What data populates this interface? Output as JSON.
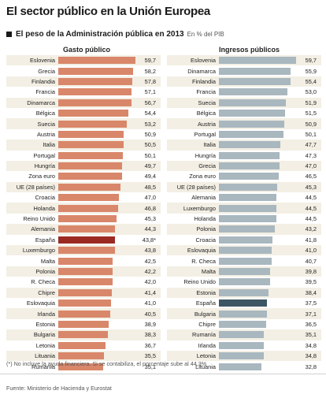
{
  "title": "El sector público en la Unión Europea",
  "subtitle": "El peso de la Administración pública en 2013",
  "unit": "En % del PIB",
  "footnote": "(*) No incluye la ayuda financiera. Si se contabiliza, el porcentaje sube al 44,3%",
  "source": "Fuente: Ministerio de Hacienda y Eurostat",
  "colors": {
    "gasto_bar": "#d9876a",
    "gasto_highlight": "#9b2a22",
    "ingresos_bar": "#a9b7bf",
    "ingresos_highlight": "#3d5663",
    "row_alt": "#f3efe4"
  },
  "chart_data": [
    {
      "type": "bar",
      "title": "Gasto público",
      "orientation": "horizontal",
      "highlight": "España",
      "xlim": [
        0,
        60
      ],
      "rows": [
        {
          "label": "Eslovenia",
          "value": 59.7,
          "text": "59,7"
        },
        {
          "label": "Grecia",
          "value": 58.2,
          "text": "58,2"
        },
        {
          "label": "Finlandia",
          "value": 57.8,
          "text": "57,8"
        },
        {
          "label": "Francia",
          "value": 57.1,
          "text": "57,1"
        },
        {
          "label": "Dinamarca",
          "value": 56.7,
          "text": "56,7"
        },
        {
          "label": "Bélgica",
          "value": 54.4,
          "text": "54,4"
        },
        {
          "label": "Suecia",
          "value": 53.2,
          "text": "53,2"
        },
        {
          "label": "Austria",
          "value": 50.9,
          "text": "50,9"
        },
        {
          "label": "Italia",
          "value": 50.5,
          "text": "50,5"
        },
        {
          "label": "Portugal",
          "value": 50.1,
          "text": "50,1"
        },
        {
          "label": "Hungría",
          "value": 49.7,
          "text": "49,7"
        },
        {
          "label": "Zona euro",
          "value": 49.4,
          "text": "49,4"
        },
        {
          "label": "UE (28 países)",
          "value": 48.5,
          "text": "48,5"
        },
        {
          "label": "Croacia",
          "value": 47.0,
          "text": "47,0"
        },
        {
          "label": "Holanda",
          "value": 46.8,
          "text": "46,8"
        },
        {
          "label": "Reino Unido",
          "value": 45.3,
          "text": "45,3"
        },
        {
          "label": "Alemania",
          "value": 44.3,
          "text": "44,3"
        },
        {
          "label": "España",
          "value": 43.8,
          "text": "43,8*"
        },
        {
          "label": "Luxemburgo",
          "value": 43.8,
          "text": "43,8"
        },
        {
          "label": "Malta",
          "value": 42.5,
          "text": "42,5"
        },
        {
          "label": "Polonia",
          "value": 42.2,
          "text": "42,2"
        },
        {
          "label": "R. Checa",
          "value": 42.0,
          "text": "42,0"
        },
        {
          "label": "Chipre",
          "value": 41.4,
          "text": "41,4"
        },
        {
          "label": "Eslovaquia",
          "value": 41.0,
          "text": "41,0"
        },
        {
          "label": "Irlanda",
          "value": 40.5,
          "text": "40,5"
        },
        {
          "label": "Estonia",
          "value": 38.9,
          "text": "38,9"
        },
        {
          "label": "Bulgaria",
          "value": 38.3,
          "text": "38,3"
        },
        {
          "label": "Letonia",
          "value": 36.7,
          "text": "36,7"
        },
        {
          "label": "Lituania",
          "value": 35.5,
          "text": "35,5"
        },
        {
          "label": "Rumanía",
          "value": 35.1,
          "text": "35,1"
        }
      ]
    },
    {
      "type": "bar",
      "title": "Ingresos públicos",
      "orientation": "horizontal",
      "highlight": "España",
      "xlim": [
        0,
        60
      ],
      "rows": [
        {
          "label": "Eslovenia",
          "value": 59.7,
          "text": "59,7"
        },
        {
          "label": "Dinamarca",
          "value": 55.9,
          "text": "55,9"
        },
        {
          "label": "Finlandia",
          "value": 55.4,
          "text": "55,4"
        },
        {
          "label": "Francia",
          "value": 53.0,
          "text": "53,0"
        },
        {
          "label": "Suecia",
          "value": 51.9,
          "text": "51,9"
        },
        {
          "label": "Bélgica",
          "value": 51.5,
          "text": "51,5"
        },
        {
          "label": "Austria",
          "value": 50.9,
          "text": "50,9"
        },
        {
          "label": "Portugal",
          "value": 50.1,
          "text": "50,1"
        },
        {
          "label": "Italia",
          "value": 47.7,
          "text": "47,7"
        },
        {
          "label": "Hungría",
          "value": 47.3,
          "text": "47,3"
        },
        {
          "label": "Grecia",
          "value": 47.0,
          "text": "47,0"
        },
        {
          "label": "Zona euro",
          "value": 46.5,
          "text": "46,5"
        },
        {
          "label": "UE (28 países)",
          "value": 45.3,
          "text": "45,3"
        },
        {
          "label": "Alemania",
          "value": 44.5,
          "text": "44,5"
        },
        {
          "label": "Luxemburgo",
          "value": 44.5,
          "text": "44,5"
        },
        {
          "label": "Holanda",
          "value": 44.5,
          "text": "44,5"
        },
        {
          "label": "Polonia",
          "value": 43.2,
          "text": "43,2"
        },
        {
          "label": "Croacia",
          "value": 41.8,
          "text": "41,8"
        },
        {
          "label": "Eslovaquia",
          "value": 41.0,
          "text": "41,0"
        },
        {
          "label": "R. Checa",
          "value": 40.7,
          "text": "40,7"
        },
        {
          "label": "Malta",
          "value": 39.8,
          "text": "39,8"
        },
        {
          "label": "Reino Unido",
          "value": 39.5,
          "text": "39,5"
        },
        {
          "label": "Estonia",
          "value": 38.4,
          "text": "38,4"
        },
        {
          "label": "España",
          "value": 37.5,
          "text": "37,5"
        },
        {
          "label": "Bulgaria",
          "value": 37.1,
          "text": "37,1"
        },
        {
          "label": "Chipre",
          "value": 36.5,
          "text": "36,5"
        },
        {
          "label": "Rumanía",
          "value": 35.1,
          "text": "35,1"
        },
        {
          "label": "Irlanda",
          "value": 34.8,
          "text": "34,8"
        },
        {
          "label": "Letonia",
          "value": 34.8,
          "text": "34,8"
        },
        {
          "label": "Lituania",
          "value": 32.8,
          "text": "32,8"
        }
      ]
    }
  ]
}
